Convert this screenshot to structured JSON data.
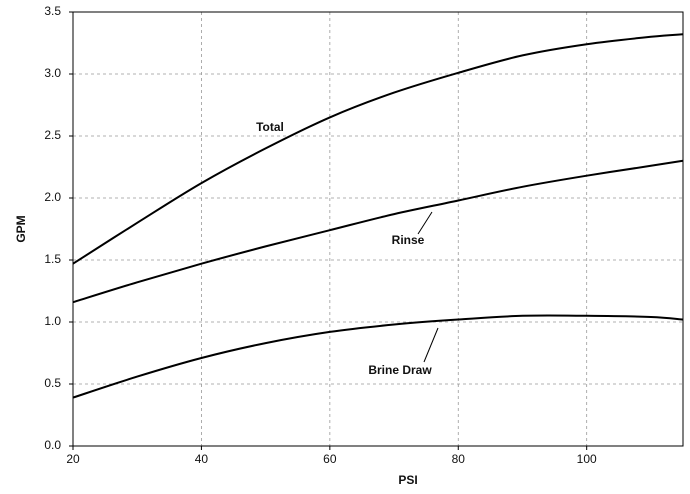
{
  "chart_data": {
    "type": "line",
    "x_label": "PSI",
    "y_label": "GPM",
    "x": [
      20,
      30,
      40,
      50,
      60,
      70,
      80,
      90,
      100,
      110,
      115
    ],
    "series": [
      {
        "name": "Total",
        "color": "#000000",
        "values": [
          1.47,
          1.8,
          2.12,
          2.4,
          2.65,
          2.85,
          3.01,
          3.15,
          3.24,
          3.3,
          3.32
        ]
      },
      {
        "name": "Rinse",
        "color": "#000000",
        "values": [
          1.16,
          1.32,
          1.47,
          1.61,
          1.74,
          1.87,
          1.98,
          2.09,
          2.18,
          2.26,
          2.3
        ]
      },
      {
        "name": "Brine Draw",
        "color": "#000000",
        "values": [
          0.39,
          0.56,
          0.71,
          0.83,
          0.92,
          0.98,
          1.02,
          1.05,
          1.05,
          1.04,
          1.02
        ]
      }
    ],
    "xlim": [
      20,
      115
    ],
    "xticks": [
      20,
      40,
      60,
      80,
      100
    ],
    "ylim": [
      0,
      3.5
    ],
    "yticks": [
      {
        "value": 0,
        "label": "0.0"
      },
      0.5,
      {
        "value": 1,
        "label": "1.0"
      },
      1.5,
      {
        "value": 2,
        "label": "2.0"
      },
      2.5,
      {
        "value": 3,
        "label": "3.0"
      },
      3.5
    ],
    "grid": true
  }
}
